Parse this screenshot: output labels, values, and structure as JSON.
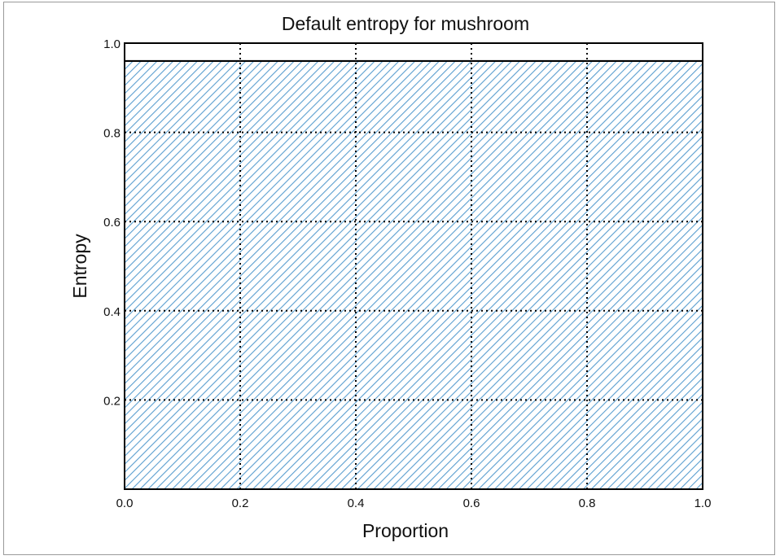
{
  "chart_data": {
    "type": "area",
    "title": "Default entropy for mushroom",
    "xlabel": "Proportion",
    "ylabel": "Entropy",
    "xlim": [
      0.0,
      1.0
    ],
    "ylim": [
      0.0,
      1.0
    ],
    "xticks": [
      "0.0",
      "0.2",
      "0.4",
      "0.6",
      "0.8",
      "1.0"
    ],
    "yticks": [
      "0.2",
      "0.4",
      "0.6",
      "0.8",
      "1.0"
    ],
    "grid": true,
    "grid_style": "dotted",
    "series": [
      {
        "x": [
          0.0,
          1.0
        ],
        "y": [
          0.96,
          0.96
        ],
        "fill": "hatched",
        "hatch_color": "#5b9fd0",
        "line_color": "#000000"
      }
    ]
  }
}
